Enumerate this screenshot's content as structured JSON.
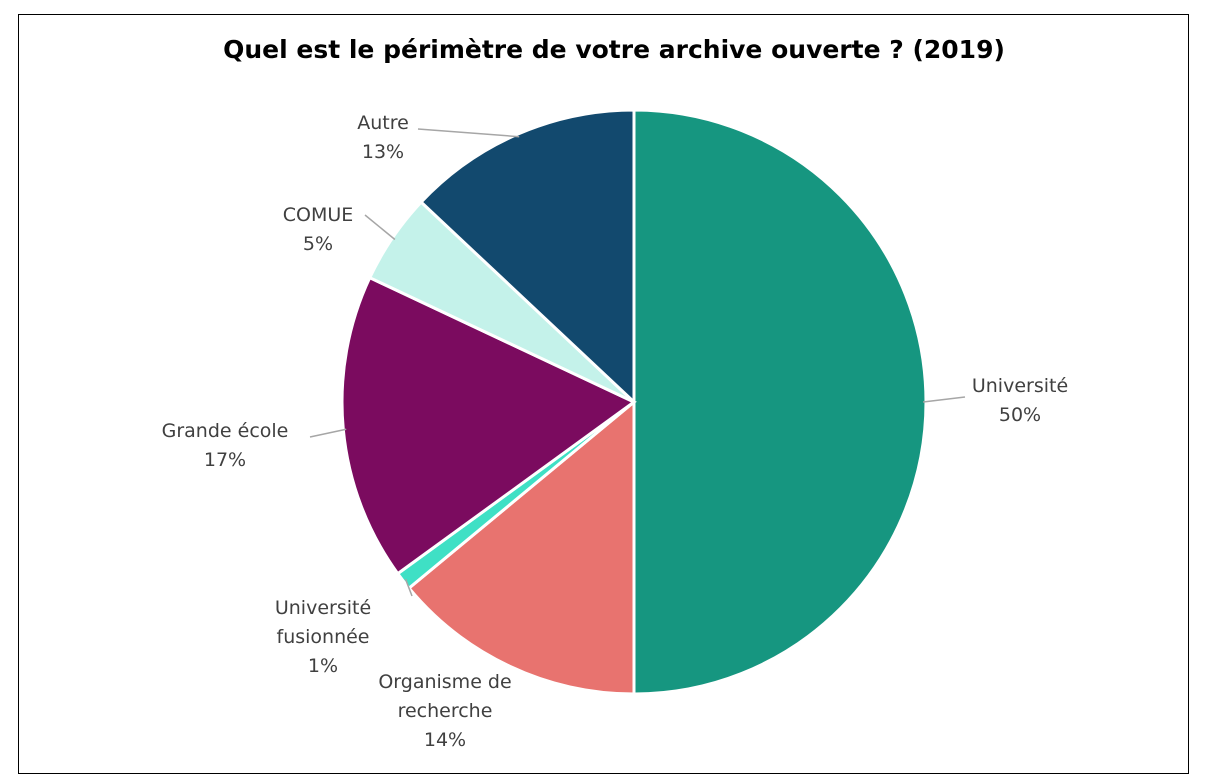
{
  "chart_data": {
    "type": "pie",
    "title": "Quel est le périmètre de votre archive ouverte ? (2019)",
    "categories": [
      "Université",
      "Organisme de recherche",
      "Université fusionnée",
      "Grande école",
      "COMUE",
      "Autre"
    ],
    "values": [
      50,
      14,
      1,
      17,
      5,
      13
    ],
    "value_labels": [
      "50%",
      "14%",
      "1%",
      "17%",
      "5%",
      "13%"
    ],
    "colors": [
      "#169680",
      "#e8736f",
      "#3fe0c5",
      "#7b0b5f",
      "#c4f2ea",
      "#12496e"
    ]
  }
}
